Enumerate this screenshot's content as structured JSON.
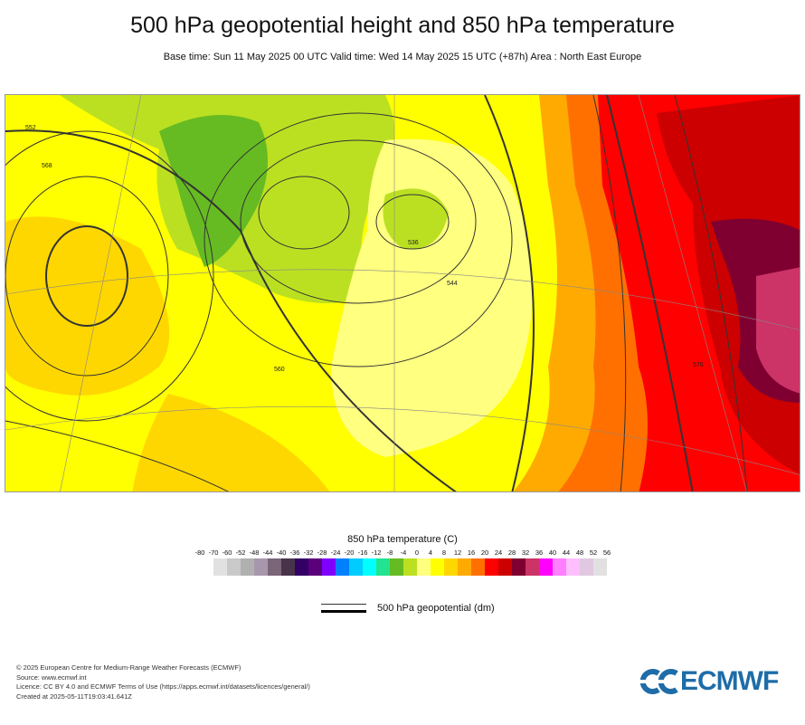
{
  "header": {
    "title": "500 hPa geopotential height and 850 hPa temperature",
    "subtitle": "Base time: Sun 11 May 2025 00 UTC Valid time: Wed 14 May 2025 15 UTC (+87h) Area : North East Europe"
  },
  "chart_data": {
    "type": "heatmap",
    "title": "500 hPa geopotential height and 850 hPa temperature",
    "area": "North East Europe",
    "fill_variable": "850 hPa temperature (C)",
    "contour_variable": "500 hPa geopotential (dm)",
    "contour_labels": [
      "536",
      "544",
      "552",
      "560",
      "568",
      "576"
    ],
    "colorbar": {
      "title": "850 hPa temperature (C)",
      "ticks": [
        "-80",
        "-70",
        "-60",
        "-52",
        "-48",
        "-44",
        "-40",
        "-36",
        "-32",
        "-28",
        "-24",
        "-20",
        "-16",
        "-12",
        "-8",
        "-4",
        "0",
        "4",
        "8",
        "12",
        "16",
        "20",
        "24",
        "28",
        "32",
        "36",
        "40",
        "44",
        "48",
        "52",
        "56"
      ],
      "colors": [
        "#e1e1e1",
        "#c9c9c9",
        "#b0b0b0",
        "#a897ac",
        "#7b6579",
        "#47344a",
        "#330066",
        "#5b007b",
        "#8000ff",
        "#0080ff",
        "#00ccff",
        "#00ffff",
        "#22e38f",
        "#66bb22",
        "#bbe022",
        "#ffff80",
        "#ffff00",
        "#ffd700",
        "#ffaa00",
        "#ff7000",
        "#ff0000",
        "#cc0000",
        "#7f0030",
        "#cc3366",
        "#ff00ff",
        "#ff80ff",
        "#ffbfff",
        "#e0c8e0",
        "#e1e1e1"
      ]
    }
  },
  "legend": {
    "contour_label": "500 hPa geopotential (dm)"
  },
  "footer": {
    "copyright": "© 2025 European Centre for Medium-Range Weather Forecasts (ECMWF)",
    "source": "Source: www.ecmwf.int",
    "licence": "Licence: CC BY 4.0 and ECMWF Terms of Use (https://apps.ecmwf.int/datasets/licences/general/)",
    "created": "Created at 2025-05-11T19:03:41.641Z"
  },
  "logo": {
    "text": "ECMWF"
  }
}
